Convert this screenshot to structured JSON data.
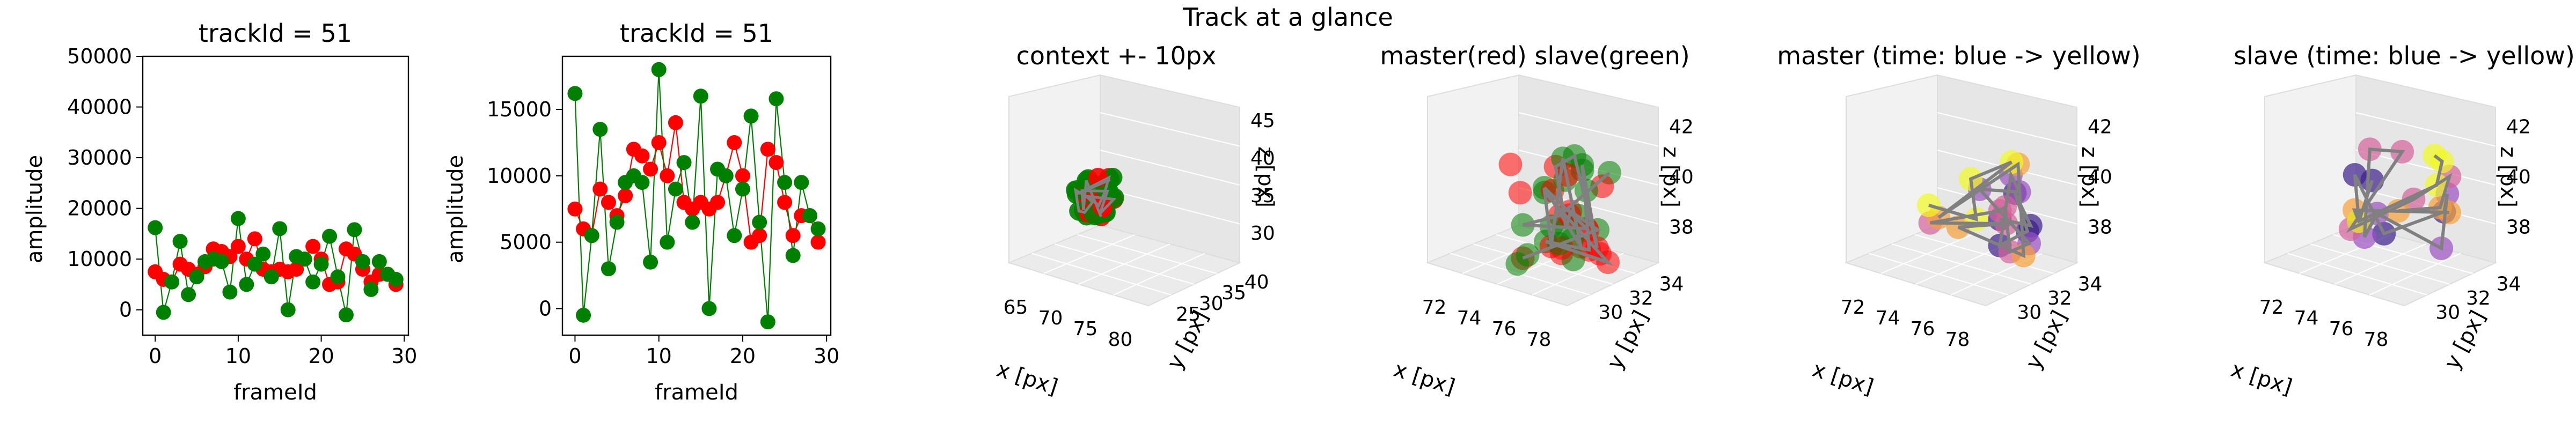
{
  "suptitle": "Track at a glance",
  "colors": {
    "master": "#ff0000",
    "slave": "#008000",
    "line_master": "#ff0000",
    "line_slave": "#008000",
    "track": "#808080"
  },
  "chart_data": [
    {
      "type": "scatter",
      "title": "trackId = 51",
      "xlabel": "frameId",
      "ylabel": "amplitude",
      "xlim": [
        -1.5,
        30.5
      ],
      "ylim": [
        -5000,
        50000
      ],
      "xticks": [
        0,
        10,
        20,
        30
      ],
      "yticks": [
        0,
        10000,
        20000,
        30000,
        40000,
        50000
      ],
      "series": [
        {
          "name": "master",
          "x": [
            0,
            1,
            2,
            3,
            4,
            5,
            6,
            7,
            8,
            9,
            10,
            11,
            12,
            13,
            14,
            15,
            16,
            17,
            18,
            19,
            20,
            21,
            22,
            23,
            24,
            25,
            26,
            27,
            28,
            29
          ],
          "values": [
            7500,
            6000,
            5500,
            9000,
            8000,
            7000,
            8500,
            12000,
            11500,
            10500,
            12500,
            10000,
            14000,
            8000,
            7500,
            8000,
            7500,
            8000,
            10000,
            12500,
            10000,
            5000,
            5500,
            12000,
            11000,
            8000,
            5500,
            7000,
            7000,
            5000
          ]
        },
        {
          "name": "slave",
          "x": [
            0,
            1,
            2,
            3,
            4,
            5,
            6,
            7,
            8,
            9,
            10,
            11,
            12,
            13,
            14,
            15,
            16,
            17,
            18,
            19,
            20,
            21,
            22,
            23,
            24,
            25,
            26,
            27,
            28,
            29
          ],
          "values": [
            16200,
            -500,
            5500,
            13500,
            3000,
            6500,
            9500,
            10000,
            9500,
            3500,
            18000,
            5000,
            9000,
            11000,
            6500,
            16000,
            0,
            10500,
            10000,
            5500,
            9000,
            14500,
            6500,
            -1000,
            15800,
            9500,
            4000,
            9500,
            7000,
            6000
          ]
        }
      ]
    },
    {
      "type": "scatter",
      "title": "trackId = 51",
      "xlabel": "frameId",
      "ylabel": "amplitude",
      "xlim": [
        -1.5,
        30.5
      ],
      "ylim": [
        -2000,
        19000
      ],
      "xticks": [
        0,
        10,
        20,
        30
      ],
      "yticks": [
        0,
        5000,
        10000,
        15000
      ],
      "series": [
        {
          "name": "master",
          "x": [
            0,
            1,
            2,
            3,
            4,
            5,
            6,
            7,
            8,
            9,
            10,
            11,
            12,
            13,
            14,
            15,
            16,
            17,
            18,
            19,
            20,
            21,
            22,
            23,
            24,
            25,
            26,
            27,
            28,
            29
          ],
          "values": [
            7500,
            6000,
            5500,
            9000,
            8000,
            7000,
            8500,
            12000,
            11500,
            10500,
            12500,
            10000,
            14000,
            8000,
            7500,
            8000,
            7500,
            8000,
            10000,
            12500,
            10000,
            5000,
            5500,
            12000,
            11000,
            8000,
            5500,
            7000,
            7000,
            5000
          ]
        },
        {
          "name": "slave",
          "x": [
            0,
            1,
            2,
            3,
            4,
            5,
            6,
            7,
            8,
            9,
            10,
            11,
            12,
            13,
            14,
            15,
            16,
            17,
            18,
            19,
            20,
            21,
            22,
            23,
            24,
            25,
            26,
            27,
            28,
            29
          ],
          "values": [
            16200,
            -500,
            5500,
            13500,
            3000,
            6500,
            9500,
            10000,
            9500,
            3500,
            18000,
            5000,
            9000,
            11000,
            6500,
            16000,
            0,
            10500,
            10000,
            5500,
            9000,
            14500,
            6500,
            -1000,
            15800,
            9500,
            4000,
            9500,
            7000,
            6000
          ]
        }
      ]
    },
    {
      "type": "scatter3d",
      "title": "context +- 10px",
      "xlabel": "x [px]",
      "ylabel": "y [px]",
      "zlabel": "z [px]",
      "xticks": [
        "65",
        "70",
        "75",
        "80"
      ],
      "yticks": [
        "25",
        "30",
        "35",
        "40"
      ],
      "zticks": [
        "30",
        "35",
        "40",
        "45"
      ],
      "colors": [
        "#008000",
        "#ff0000",
        "#808080"
      ]
    },
    {
      "type": "scatter3d",
      "title": "master(red) slave(green)",
      "xlabel": "x [px]",
      "ylabel": "y [px]",
      "zlabel": "z [px]",
      "xticks": [
        "72",
        "74",
        "76",
        "78"
      ],
      "yticks": [
        "30",
        "32",
        "34"
      ],
      "zticks": [
        "38",
        "40",
        "42"
      ],
      "colors": [
        "#ff0000",
        "#008000",
        "#808080"
      ]
    },
    {
      "type": "scatter3d",
      "title": "master (time: blue -> yellow)",
      "xlabel": "x [px]",
      "ylabel": "y [px]",
      "zlabel": "z [px]",
      "xticks": [
        "72",
        "74",
        "76",
        "78"
      ],
      "yticks": [
        "30",
        "32",
        "34"
      ],
      "zticks": [
        "38",
        "40",
        "42"
      ],
      "colors": [
        "#3b1e8a",
        "#9a50c0",
        "#d4619a",
        "#f5a037",
        "#f0f921"
      ]
    },
    {
      "type": "scatter3d",
      "title": "slave (time: blue -> yellow)",
      "xlabel": "x [px]",
      "ylabel": "y [px]",
      "zlabel": "z [px]",
      "xticks": [
        "72",
        "74",
        "76",
        "78"
      ],
      "yticks": [
        "30",
        "32",
        "34"
      ],
      "zticks": [
        "38",
        "40",
        "42"
      ],
      "colors": [
        "#3b1e8a",
        "#9a50c0",
        "#d4619a",
        "#f5a037",
        "#f0f921"
      ]
    }
  ]
}
